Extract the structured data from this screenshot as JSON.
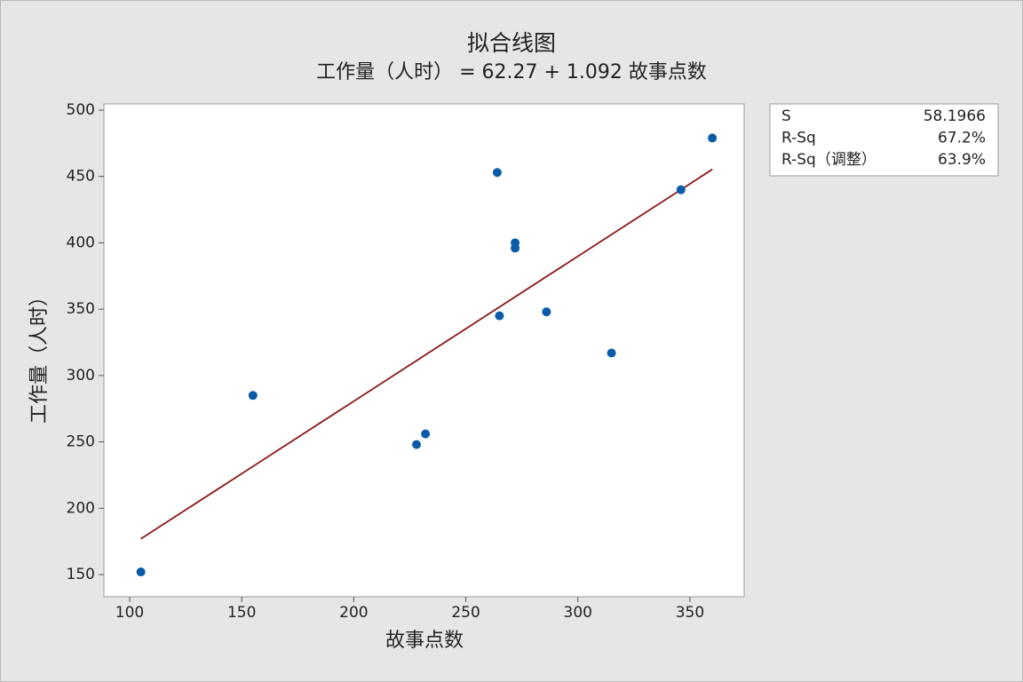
{
  "chart_data": {
    "type": "scatter",
    "title": "拟合线图",
    "subtitle": "工作量（人时） = 62.27 + 1.092 故事点数",
    "x_label": "故事点数",
    "y_label": "工作量（人时）",
    "x": [
      105,
      155,
      228,
      232,
      264,
      265,
      272,
      272,
      286,
      315,
      346,
      360
    ],
    "values": [
      152,
      285,
      248,
      256,
      453,
      345,
      400,
      396,
      348,
      317,
      440,
      479
    ],
    "color": "#0b5ca8",
    "fit": {
      "intercept": 62.27,
      "slope": 1.092,
      "color": "#8b1a1a"
    },
    "xlim": [
      88.5,
      374.2
    ],
    "ylim": [
      133.3,
      504.7
    ],
    "xticks": [
      100,
      150,
      200,
      250,
      300,
      350
    ],
    "yticks": [
      150,
      200,
      250,
      300,
      350,
      400,
      450,
      500
    ],
    "stats": [
      [
        "S",
        "58.1966"
      ],
      [
        "R-Sq",
        "67.2%"
      ],
      [
        "R-Sq（调整）",
        "63.9%"
      ]
    ]
  }
}
